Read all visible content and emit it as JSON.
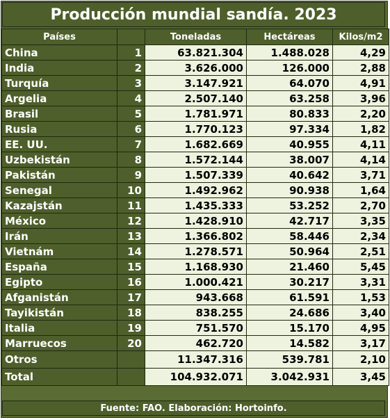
{
  "title": "Producción mundial sandía. 2023",
  "headers": {
    "country": "Países",
    "rank": "",
    "tons": "Toneladas",
    "hectares": "Hectáreas",
    "kilos": "Kilos/m2"
  },
  "rows": [
    {
      "country": "China",
      "rank": "1",
      "tons": "63.821.304",
      "hectares": "1.488.028",
      "kilos": "4,29"
    },
    {
      "country": "India",
      "rank": "2",
      "tons": "3.626.000",
      "hectares": "126.000",
      "kilos": "2,88"
    },
    {
      "country": "Turquía",
      "rank": "3",
      "tons": "3.147.921",
      "hectares": "64.070",
      "kilos": "4,91"
    },
    {
      "country": "Argelia",
      "rank": "4",
      "tons": "2.507.140",
      "hectares": "63.258",
      "kilos": "3,96"
    },
    {
      "country": "Brasil",
      "rank": "5",
      "tons": "1.781.971",
      "hectares": "80.833",
      "kilos": "2,20"
    },
    {
      "country": "Rusia",
      "rank": "6",
      "tons": "1.770.123",
      "hectares": "97.334",
      "kilos": "1,82"
    },
    {
      "country": "EE. UU.",
      "rank": "7",
      "tons": "1.682.669",
      "hectares": "40.955",
      "kilos": "4,11"
    },
    {
      "country": "Uzbekistán",
      "rank": "8",
      "tons": "1.572.144",
      "hectares": "38.007",
      "kilos": "4,14"
    },
    {
      "country": "Pakistán",
      "rank": "9",
      "tons": "1.507.339",
      "hectares": "40.642",
      "kilos": "3,71"
    },
    {
      "country": "Senegal",
      "rank": "10",
      "tons": "1.492.962",
      "hectares": "90.938",
      "kilos": "1,64"
    },
    {
      "country": "Kazajstán",
      "rank": "11",
      "tons": "1.435.333",
      "hectares": "53.252",
      "kilos": "2,70"
    },
    {
      "country": "México",
      "rank": "12",
      "tons": "1.428.910",
      "hectares": "42.717",
      "kilos": "3,35"
    },
    {
      "country": "Irán",
      "rank": "13",
      "tons": "1.366.802",
      "hectares": "58.446",
      "kilos": "2,34"
    },
    {
      "country": "Vietnám",
      "rank": "14",
      "tons": "1.278.571",
      "hectares": "50.964",
      "kilos": "2,51"
    },
    {
      "country": "España",
      "rank": "15",
      "tons": "1.168.930",
      "hectares": "21.460",
      "kilos": "5,45"
    },
    {
      "country": "Egipto",
      "rank": "16",
      "tons": "1.000.421",
      "hectares": "30.217",
      "kilos": "3,31"
    },
    {
      "country": "Afganistán",
      "rank": "17",
      "tons": "943.668",
      "hectares": "61.591",
      "kilos": "1,53"
    },
    {
      "country": "Tayikistán",
      "rank": "18",
      "tons": "838.255",
      "hectares": "24.686",
      "kilos": "3,40"
    },
    {
      "country": "Italia",
      "rank": "19",
      "tons": "751.570",
      "hectares": "15.170",
      "kilos": "4,95"
    },
    {
      "country": "Marruecos",
      "rank": "20",
      "tons": "462.720",
      "hectares": "14.582",
      "kilos": "3,17"
    }
  ],
  "otros": {
    "country": "Otros",
    "tons": "11.347.316",
    "hectares": "539.781",
    "kilos": "2,10"
  },
  "total": {
    "country": "Total",
    "tons": "104.932.071",
    "hectares": "3.042.931",
    "kilos": "3,45"
  },
  "footer": "Fuente: FAO. Elaboración: Hortoinfo.",
  "colors": {
    "header_bg": "#4e5f2b",
    "cell_bg": "#eef3df",
    "border": "#1f2810"
  }
}
